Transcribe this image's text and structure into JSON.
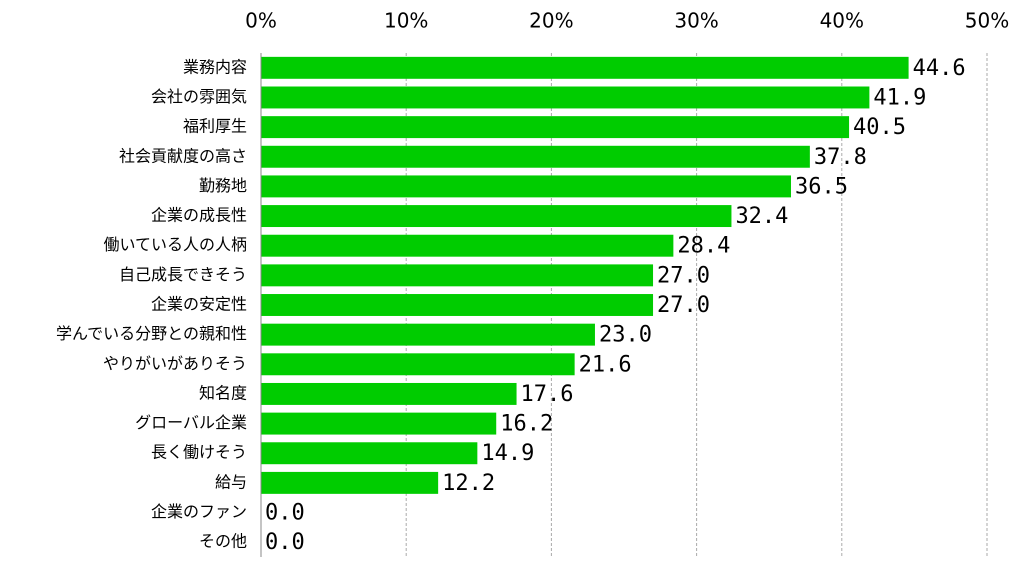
{
  "chart_data": {
    "type": "bar",
    "orientation": "horizontal",
    "categories": [
      "業務内容",
      "会社の雰囲気",
      "福利厚生",
      "社会貢献度の高さ",
      "勤務地",
      "企業の成長性",
      "働いている人の人柄",
      "自己成長できそう",
      "企業の安定性",
      "学んでいる分野との親和性",
      "やりがいがありそう",
      "知名度",
      "グローバル企業",
      "長く働けそう",
      "給与",
      "企業のファン",
      "その他"
    ],
    "values": [
      44.6,
      41.9,
      40.5,
      37.8,
      36.5,
      32.4,
      28.4,
      27.0,
      27.0,
      23.0,
      21.6,
      17.6,
      16.2,
      14.9,
      12.2,
      0.0,
      0.0
    ],
    "value_labels": [
      "44.6",
      "41.9",
      "40.5",
      "37.8",
      "36.5",
      "32.4",
      "28.4",
      "27.0",
      "27.0",
      "23.0",
      "21.6",
      "17.6",
      "16.2",
      "14.9",
      "12.2",
      "0.0",
      "0.0"
    ],
    "color": "#00cc00",
    "xlim": [
      0,
      50
    ],
    "xticks": [
      {
        "value": 0,
        "label": "0%"
      },
      {
        "value": 10,
        "label": "10%"
      },
      {
        "value": 20,
        "label": "20%"
      },
      {
        "value": 30,
        "label": "30%"
      },
      {
        "value": 40,
        "label": "40%"
      },
      {
        "value": 50,
        "label": "50%"
      }
    ],
    "grid": true
  }
}
